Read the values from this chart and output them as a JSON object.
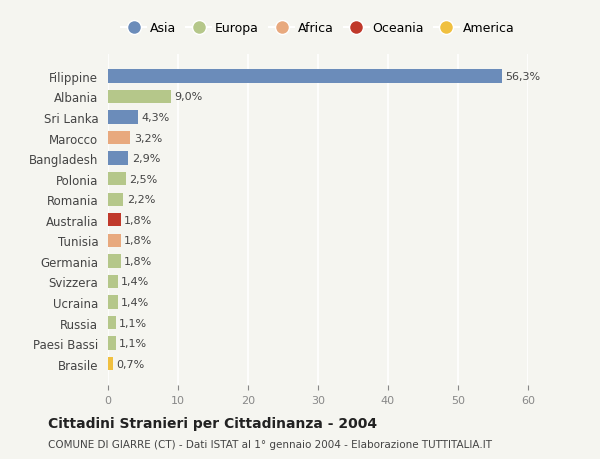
{
  "countries": [
    "Filippine",
    "Albania",
    "Sri Lanka",
    "Marocco",
    "Bangladesh",
    "Polonia",
    "Romania",
    "Australia",
    "Tunisia",
    "Germania",
    "Svizzera",
    "Ucraina",
    "Russia",
    "Paesi Bassi",
    "Brasile"
  ],
  "values": [
    56.3,
    9.0,
    4.3,
    3.2,
    2.9,
    2.5,
    2.2,
    1.8,
    1.8,
    1.8,
    1.4,
    1.4,
    1.1,
    1.1,
    0.7
  ],
  "labels": [
    "56,3%",
    "9,0%",
    "4,3%",
    "3,2%",
    "2,9%",
    "2,5%",
    "2,2%",
    "1,8%",
    "1,8%",
    "1,8%",
    "1,4%",
    "1,4%",
    "1,1%",
    "1,1%",
    "0,7%"
  ],
  "colors": [
    "#6b8cba",
    "#b5c78a",
    "#6b8cba",
    "#e8a97e",
    "#6b8cba",
    "#b5c78a",
    "#b5c78a",
    "#c0392b",
    "#e8a97e",
    "#b5c78a",
    "#b5c78a",
    "#b5c78a",
    "#b5c78a",
    "#b5c78a",
    "#f0c040"
  ],
  "legend_labels": [
    "Asia",
    "Europa",
    "Africa",
    "Oceania",
    "America"
  ],
  "legend_colors": [
    "#6b8cba",
    "#b5c78a",
    "#e8a97e",
    "#c0392b",
    "#f0c040"
  ],
  "title": "Cittadini Stranieri per Cittadinanza - 2004",
  "subtitle": "COMUNE DI GIARRE (CT) - Dati ISTAT al 1° gennaio 2004 - Elaborazione TUTTITALIA.IT",
  "xlim": [
    0,
    60
  ],
  "xticks": [
    0,
    10,
    20,
    30,
    40,
    50,
    60
  ],
  "background_color": "#f5f5f0",
  "bar_height": 0.65,
  "grid_color": "#ffffff",
  "tick_color": "#888888"
}
